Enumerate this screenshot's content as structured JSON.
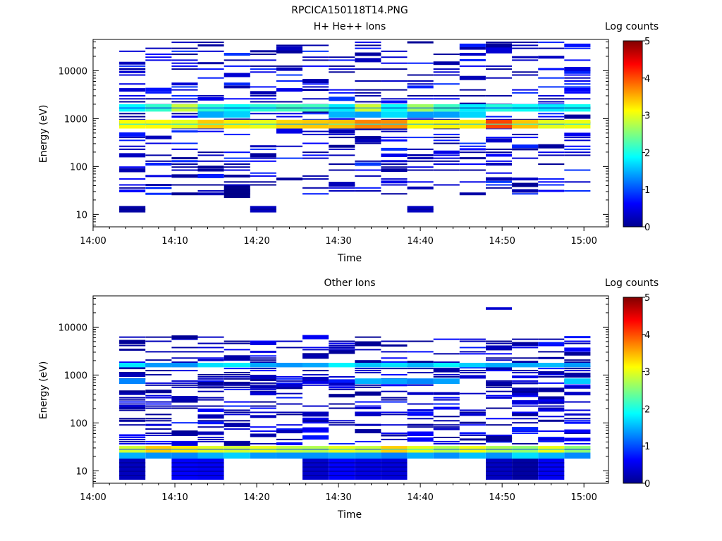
{
  "page_title": "RPCICA150118T14.PNG",
  "chart_data": [
    {
      "type": "heatmap",
      "title": "H+ He++ Ions",
      "xlabel": "Time",
      "ylabel": "Energy (eV)",
      "x_ticks": [
        "14:00",
        "14:10",
        "14:20",
        "14:30",
        "14:40",
        "14:50",
        "15:00"
      ],
      "xlim_minutes": [
        0,
        63
      ],
      "y_scale": "log",
      "ylim": [
        5.5,
        45000
      ],
      "y_ticks": [
        {
          "value": 10,
          "label": "10"
        },
        {
          "value": 100,
          "label": "100"
        },
        {
          "value": 1000,
          "label": "1000"
        },
        {
          "value": 10000,
          "label": "10000"
        }
      ],
      "colorbar": {
        "label": "Log counts",
        "range": [
          0,
          5
        ],
        "ticks": [
          "0",
          "1",
          "2",
          "3",
          "4",
          "5"
        ]
      },
      "time_bins_minutes": [
        [
          3.2,
          6.4
        ],
        [
          6.4,
          9.6
        ],
        [
          9.6,
          12.8
        ],
        [
          12.8,
          16.0
        ],
        [
          16.0,
          19.2
        ],
        [
          19.2,
          22.4
        ],
        [
          22.4,
          25.6
        ],
        [
          25.6,
          28.8
        ],
        [
          28.8,
          32.0
        ],
        [
          32.0,
          35.2
        ],
        [
          35.2,
          38.4
        ],
        [
          38.4,
          41.6
        ],
        [
          41.6,
          44.8
        ],
        [
          44.8,
          48.0
        ],
        [
          48.0,
          51.2
        ],
        [
          51.2,
          54.4
        ],
        [
          54.4,
          57.6
        ],
        [
          57.6,
          60.8
        ]
      ],
      "strong_bands": [
        {
          "energy_range_eV": [
            620,
            950
          ],
          "bins": "all",
          "log_counts": 3.2,
          "peak_bins": [
            9,
            10,
            14
          ],
          "peak_log_counts": 3.8
        },
        {
          "energy_range_eV": [
            1400,
            2000
          ],
          "bins": "all",
          "log_counts": 2.0,
          "peak_bins": [
            2,
            9,
            11
          ],
          "peak_log_counts": 2.8
        },
        {
          "energy_range_eV": [
            1050,
            1400
          ],
          "bins": [
            3,
            4,
            8,
            9,
            10,
            11,
            12,
            13
          ],
          "log_counts": 1.6
        },
        {
          "energy_range_eV": [
            11,
            15
          ],
          "bins": [
            0,
            5,
            11
          ],
          "log_counts": 0.2
        },
        {
          "energy_range_eV": [
            22,
            40
          ],
          "bins": [
            4
          ],
          "log_counts": 0.2
        },
        {
          "energy_range_eV": [
            38,
            48
          ],
          "bins": [
            8
          ],
          "log_counts": 0.2
        }
      ],
      "background_log_counts": [
        0.1,
        0.9
      ],
      "background_energy_range_eV": [
        25,
        42000
      ]
    },
    {
      "type": "heatmap",
      "title": "Other Ions",
      "xlabel": "Time",
      "ylabel": "Energy (eV)",
      "x_ticks": [
        "14:00",
        "14:10",
        "14:20",
        "14:30",
        "14:40",
        "14:50",
        "15:00"
      ],
      "xlim_minutes": [
        0,
        63
      ],
      "y_scale": "log",
      "ylim": [
        5.5,
        45000
      ],
      "y_ticks": [
        {
          "value": 10,
          "label": "10"
        },
        {
          "value": 100,
          "label": "100"
        },
        {
          "value": 1000,
          "label": "1000"
        },
        {
          "value": 10000,
          "label": "10000"
        }
      ],
      "colorbar": {
        "label": "Log counts",
        "range": [
          0,
          5
        ],
        "ticks": [
          "0",
          "1",
          "2",
          "3",
          "4",
          "5"
        ]
      },
      "time_bins_minutes": [
        [
          3.2,
          6.4
        ],
        [
          6.4,
          9.6
        ],
        [
          9.6,
          12.8
        ],
        [
          12.8,
          16.0
        ],
        [
          16.0,
          19.2
        ],
        [
          19.2,
          22.4
        ],
        [
          22.4,
          25.6
        ],
        [
          25.6,
          28.8
        ],
        [
          28.8,
          32.0
        ],
        [
          32.0,
          35.2
        ],
        [
          35.2,
          38.4
        ],
        [
          38.4,
          41.6
        ],
        [
          41.6,
          44.8
        ],
        [
          44.8,
          48.0
        ],
        [
          48.0,
          51.2
        ],
        [
          51.2,
          54.4
        ],
        [
          54.4,
          57.6
        ],
        [
          57.6,
          60.8
        ]
      ],
      "strong_bands": [
        {
          "energy_range_eV": [
            24,
            33
          ],
          "bins": "all",
          "log_counts": 2.8,
          "peak_bins": [
            1,
            2,
            10,
            13
          ],
          "peak_log_counts": 3.2
        },
        {
          "energy_range_eV": [
            18,
            24
          ],
          "bins": "all",
          "log_counts": 1.5
        },
        {
          "energy_range_eV": [
            1450,
            1800
          ],
          "bins": "all",
          "log_counts": 1.6
        },
        {
          "energy_range_eV": [
            650,
            850
          ],
          "bins": [
            0,
            9,
            10,
            11,
            12,
            17
          ],
          "log_counts": 1.5
        },
        {
          "energy_range_eV": [
            6.5,
            18
          ],
          "bins": [
            0,
            2,
            3,
            7,
            8,
            9,
            10,
            14,
            15,
            16
          ],
          "log_counts": 0.4
        },
        {
          "energy_range_eV": [
            23000,
            26000
          ],
          "bins": [
            14
          ],
          "log_counts": 0.5
        }
      ],
      "background_log_counts": [
        0.1,
        0.8
      ],
      "background_energy_range_eV": [
        35,
        6500
      ]
    }
  ]
}
